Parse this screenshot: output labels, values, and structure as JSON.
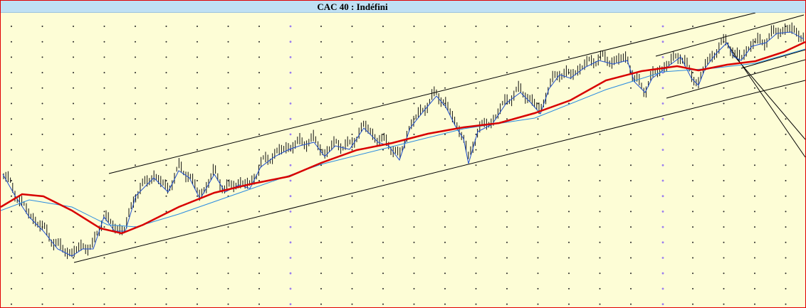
{
  "title": "CAC 40 : Indéfini"
}
